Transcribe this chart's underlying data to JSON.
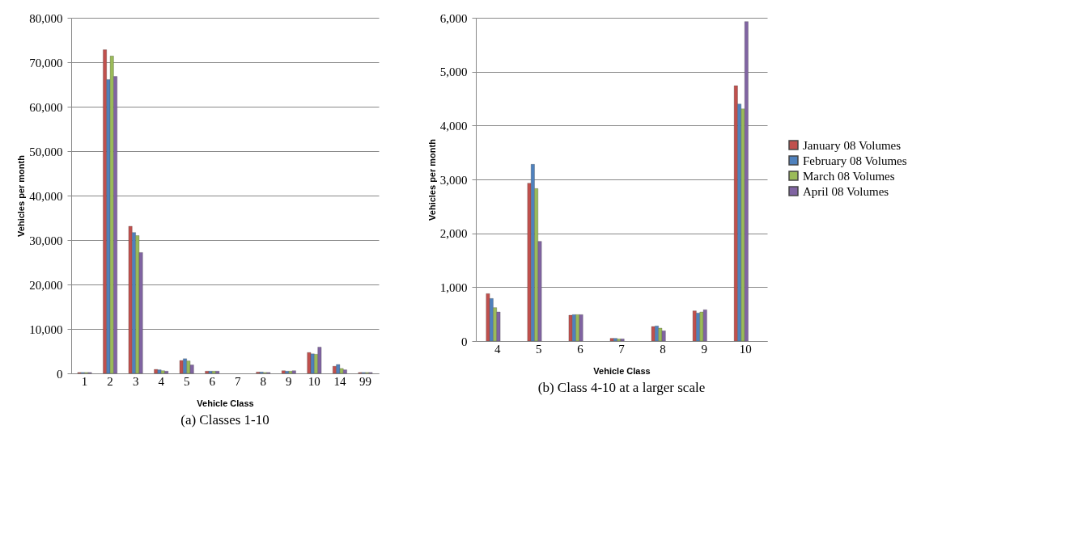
{
  "chart_data": [
    {
      "type": "bar",
      "title": "(a)  Classes 1-10",
      "xlabel": "Vehicle Class",
      "ylabel": "Vehicles per month",
      "categories": [
        "1",
        "2",
        "3",
        "4",
        "5",
        "6",
        "7",
        "8",
        "9",
        "10",
        "14",
        "99"
      ],
      "series": [
        {
          "color": "#c0504d",
          "values": [
            200,
            72800,
            33100,
            900,
            2900,
            500,
            null,
            300,
            600,
            4700,
            1600,
            200
          ]
        },
        {
          "color": "#4f81bd",
          "values": [
            200,
            66100,
            31700,
            800,
            3300,
            500,
            null,
            300,
            500,
            4400,
            2000,
            200
          ]
        },
        {
          "color": "#9bbb59",
          "values": [
            200,
            71400,
            31000,
            600,
            2800,
            500,
            null,
            200,
            500,
            4300,
            1100,
            200
          ]
        },
        {
          "color": "#8064a2",
          "values": [
            200,
            66800,
            27200,
            500,
            1900,
            500,
            null,
            200,
            600,
            5900,
            800,
            200
          ]
        }
      ],
      "ylim": [
        0,
        80000
      ],
      "yticks": [
        0,
        {
          "value": 10000,
          "label": "10,000"
        },
        {
          "value": 20000,
          "label": "20,000"
        },
        {
          "value": 30000,
          "label": "30,000"
        },
        {
          "value": 40000,
          "label": "40,000"
        },
        {
          "value": 50000,
          "label": "50,000"
        },
        {
          "value": 60000,
          "label": "60,000"
        },
        {
          "value": 70000,
          "label": "70,000"
        },
        {
          "value": 80000,
          "label": "80,000"
        }
      ],
      "grid": "y",
      "legend": false
    },
    {
      "type": "bar",
      "title": "(b)  Class 4-10 at a larger scale",
      "xlabel": "Vehicle Class",
      "ylabel": "Vehicles per month",
      "categories": [
        "4",
        "5",
        "6",
        "7",
        "8",
        "9",
        "10"
      ],
      "series": [
        {
          "name": "January 08 Volumes",
          "color": "#c0504d",
          "values": [
            880,
            2930,
            480,
            50,
            270,
            560,
            4740
          ]
        },
        {
          "name": "February 08 Volumes",
          "color": "#4f81bd",
          "values": [
            790,
            3280,
            490,
            50,
            280,
            520,
            4400
          ]
        },
        {
          "name": "March 08 Volumes",
          "color": "#9bbb59",
          "values": [
            620,
            2830,
            490,
            40,
            240,
            540,
            4310
          ]
        },
        {
          "name": "April 08 Volumes",
          "color": "#8064a2",
          "values": [
            540,
            1850,
            490,
            40,
            190,
            580,
            5930
          ]
        }
      ],
      "ylim": [
        0,
        6000
      ],
      "yticks": [
        0,
        {
          "value": 1000,
          "label": "1,000"
        },
        {
          "value": 2000,
          "label": "2,000"
        },
        {
          "value": 3000,
          "label": "3,000"
        },
        {
          "value": 4000,
          "label": "4,000"
        },
        {
          "value": 5000,
          "label": "5,000"
        },
        {
          "value": 6000,
          "label": "6,000"
        }
      ],
      "grid": "y",
      "legend": "right"
    }
  ]
}
